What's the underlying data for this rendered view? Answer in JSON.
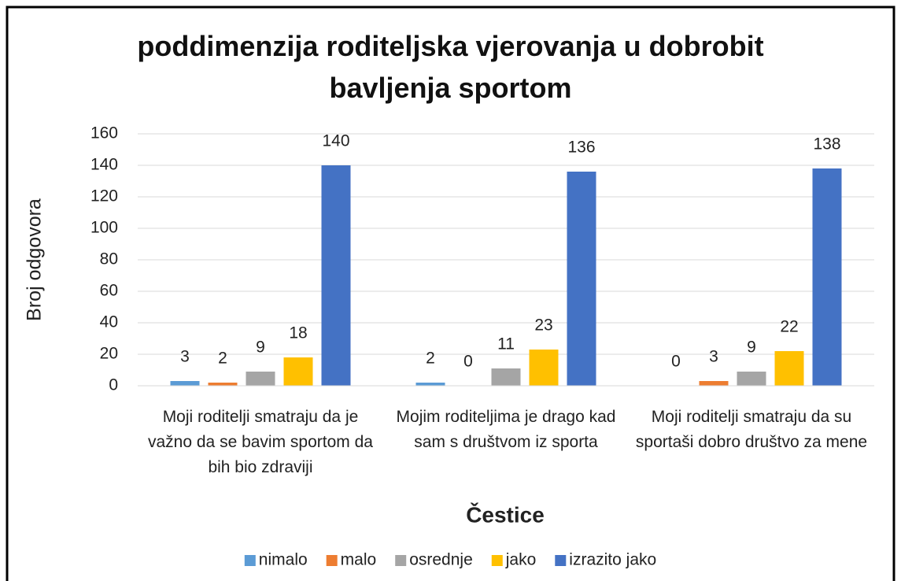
{
  "chart_data": {
    "type": "bar",
    "title": "poddimenzija roditeljska vjerovanja u dobrobit bavljenja sportom",
    "x_label": "Čestice",
    "y_label": "Broj odgovora",
    "categories": [
      "Moji roditelji smatraju da je važno da se bavim sportom da bih bio zdraviji",
      "Mojim roditeljima je drago kad sam s društvom iz sporta",
      "Moji roditelji smatraju da su sportaši dobro društvo za mene"
    ],
    "series": [
      {
        "name": "nimalo",
        "color": "#5b9bd5",
        "values": [
          3,
          2,
          0
        ]
      },
      {
        "name": "malo",
        "color": "#ed7d31",
        "values": [
          2,
          0,
          3
        ]
      },
      {
        "name": "osrednje",
        "color": "#a5a5a5",
        "values": [
          9,
          11,
          9
        ]
      },
      {
        "name": "jako",
        "color": "#ffc000",
        "values": [
          18,
          23,
          22
        ]
      },
      {
        "name": "izrazito jako",
        "color": "#4472c4",
        "values": [
          140,
          136,
          138
        ]
      }
    ],
    "ylim": [
      0,
      160
    ],
    "yticks": [
      0,
      20,
      40,
      60,
      80,
      100,
      120,
      140,
      160
    ],
    "grid": true,
    "legend": "bottom"
  }
}
